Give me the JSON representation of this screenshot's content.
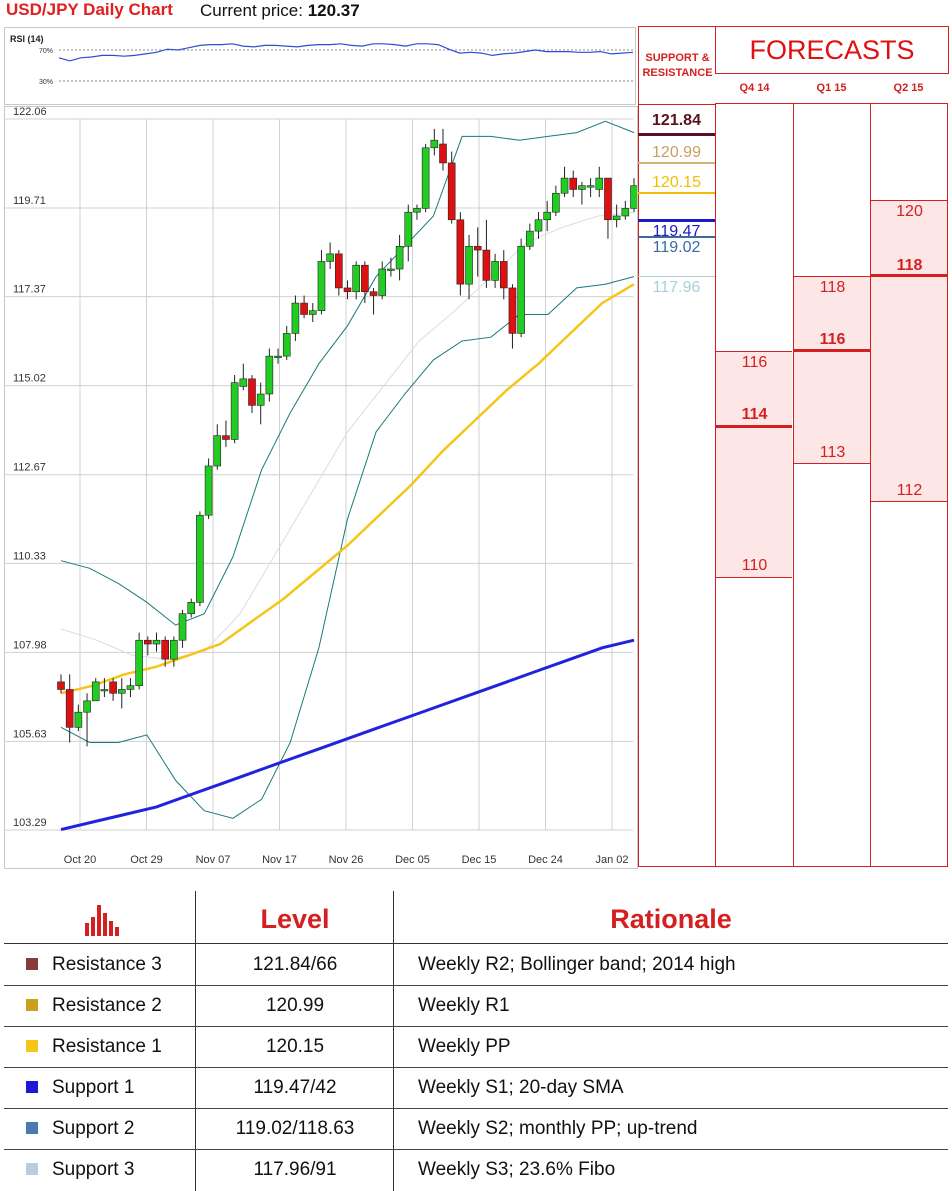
{
  "header": {
    "title": "USD/JPY Daily Chart",
    "price_label": "Current price:",
    "price_value": "120.37"
  },
  "rsi": {
    "label": "RSI (14)",
    "level_high": "70%",
    "level_low": "30%",
    "values": [
      60,
      56,
      60,
      61,
      63,
      63,
      62,
      63,
      65,
      67,
      71,
      70,
      73,
      76,
      77,
      77,
      78,
      75,
      74,
      76,
      76,
      75,
      74,
      76,
      77,
      77,
      78,
      76,
      75,
      78,
      78,
      77,
      75,
      78,
      78,
      77,
      71,
      66,
      67,
      66,
      63,
      65,
      66,
      68,
      70,
      68,
      68,
      68,
      67,
      67,
      68,
      65,
      66,
      67
    ],
    "line_color": "#2a4fd6"
  },
  "chart_data": {
    "type": "candlestick",
    "title": "USD/JPY Daily Chart",
    "yticks": [
      "122.06",
      "119.71",
      "117.37",
      "115.02",
      "112.67",
      "110.33",
      "107.98",
      "105.63",
      "103.29"
    ],
    "ylim": [
      103.29,
      122.06
    ],
    "xticks": [
      "Oct 20",
      "Oct 29",
      "Nov 07",
      "Nov 17",
      "Nov 26",
      "Dec 05",
      "Dec 15",
      "Dec 24",
      "Jan 02"
    ],
    "candles": [
      [
        107.2,
        107.0,
        107.4,
        106.9
      ],
      [
        107.0,
        106.0,
        107.4,
        105.6
      ],
      [
        106.0,
        106.4,
        106.6,
        105.9
      ],
      [
        106.4,
        106.7,
        106.9,
        105.5
      ],
      [
        106.7,
        107.2,
        107.3,
        106.7
      ],
      [
        107.0,
        107.0,
        107.3,
        106.8
      ],
      [
        107.2,
        106.9,
        107.3,
        106.7
      ],
      [
        106.9,
        107.0,
        107.3,
        106.5
      ],
      [
        107.0,
        107.1,
        107.3,
        106.8
      ],
      [
        107.1,
        108.3,
        108.5,
        107.0
      ],
      [
        108.3,
        108.2,
        108.4,
        107.9
      ],
      [
        108.2,
        108.3,
        108.5,
        108.0
      ],
      [
        108.3,
        107.8,
        108.4,
        107.6
      ],
      [
        107.8,
        108.3,
        108.4,
        107.6
      ],
      [
        108.3,
        109.0,
        109.1,
        108.1
      ],
      [
        109.0,
        109.3,
        109.4,
        108.9
      ],
      [
        109.3,
        111.6,
        111.7,
        109.2
      ],
      [
        111.6,
        112.9,
        113.1,
        111.5
      ],
      [
        112.9,
        113.7,
        114.0,
        112.8
      ],
      [
        113.7,
        113.6,
        114.1,
        113.4
      ],
      [
        113.6,
        115.1,
        115.3,
        113.5
      ],
      [
        115.0,
        115.2,
        115.6,
        114.9
      ],
      [
        115.2,
        114.5,
        115.3,
        114.3
      ],
      [
        114.5,
        114.8,
        115.1,
        114.0
      ],
      [
        114.8,
        115.8,
        116.0,
        114.6
      ],
      [
        115.8,
        115.8,
        116.0,
        115.6
      ],
      [
        115.8,
        116.4,
        116.6,
        115.7
      ],
      [
        116.4,
        117.2,
        117.4,
        116.2
      ],
      [
        117.2,
        116.9,
        117.4,
        116.8
      ],
      [
        116.9,
        117.0,
        117.2,
        116.7
      ],
      [
        117.0,
        118.3,
        118.6,
        116.9
      ],
      [
        118.3,
        118.5,
        118.8,
        118.1
      ],
      [
        118.5,
        117.6,
        118.6,
        117.4
      ],
      [
        117.6,
        117.5,
        117.8,
        117.3
      ],
      [
        117.5,
        118.2,
        118.3,
        117.3
      ],
      [
        118.2,
        117.5,
        118.3,
        117.2
      ],
      [
        117.5,
        117.4,
        117.6,
        116.9
      ],
      [
        117.4,
        118.1,
        118.3,
        117.3
      ],
      [
        118.1,
        118.1,
        118.4,
        117.9
      ],
      [
        118.1,
        118.7,
        119.0,
        117.8
      ],
      [
        118.7,
        119.6,
        119.8,
        118.3
      ],
      [
        119.6,
        119.7,
        119.8,
        119.4
      ],
      [
        119.7,
        121.3,
        121.4,
        119.6
      ],
      [
        121.3,
        121.5,
        121.8,
        121.1
      ],
      [
        121.4,
        120.9,
        121.8,
        120.7
      ],
      [
        120.9,
        119.4,
        121.2,
        119.3
      ],
      [
        119.4,
        117.7,
        119.6,
        117.4
      ],
      [
        117.7,
        118.7,
        119.0,
        117.3
      ],
      [
        118.7,
        118.6,
        119.2,
        117.9
      ],
      [
        118.6,
        117.8,
        119.4,
        117.6
      ],
      [
        117.8,
        118.3,
        118.5,
        117.6
      ],
      [
        118.3,
        117.6,
        118.6,
        117.3
      ],
      [
        117.6,
        116.4,
        117.7,
        116.0
      ],
      [
        116.4,
        118.7,
        118.9,
        116.3
      ],
      [
        118.7,
        119.1,
        119.3,
        118.6
      ],
      [
        119.1,
        119.4,
        119.6,
        118.9
      ],
      [
        119.4,
        119.6,
        119.9,
        119.1
      ],
      [
        119.6,
        120.1,
        120.3,
        119.5
      ],
      [
        120.1,
        120.5,
        120.8,
        120.0
      ],
      [
        120.5,
        120.2,
        120.7,
        120.0
      ],
      [
        120.2,
        120.3,
        120.4,
        119.8
      ],
      [
        120.3,
        120.3,
        120.5,
        120.0
      ],
      [
        120.2,
        120.5,
        120.8,
        120.0
      ],
      [
        120.5,
        119.4,
        120.5,
        118.9
      ],
      [
        119.4,
        119.5,
        119.8,
        119.2
      ],
      [
        119.5,
        119.7,
        119.9,
        119.4
      ],
      [
        119.7,
        120.3,
        120.5,
        119.6
      ]
    ],
    "sma50_values": [
      106.9,
      107.1,
      107.4,
      107.6,
      107.9,
      108.2,
      108.8,
      109.4,
      110.1,
      110.8,
      111.6,
      112.4,
      113.3,
      114.1,
      114.9,
      115.6,
      116.4,
      117.2,
      117.7
    ],
    "sma200_values": [
      103.3,
      103.5,
      103.7,
      103.9,
      104.2,
      104.5,
      104.8,
      105.1,
      105.4,
      105.7,
      106.0,
      106.3,
      106.6,
      106.9,
      107.2,
      107.5,
      107.8,
      108.1,
      108.3
    ],
    "bb_upper": [
      110.4,
      110.2,
      109.8,
      109.3,
      108.7,
      109.0,
      110.5,
      112.8,
      114.3,
      115.6,
      116.6,
      117.9,
      118.7,
      119.5,
      121.6,
      121.6,
      121.5,
      121.6,
      121.7,
      122.0,
      121.7
    ],
    "bb_lower": [
      106.0,
      105.6,
      105.6,
      105.8,
      104.6,
      103.8,
      103.6,
      104.1,
      105.6,
      108.1,
      111.5,
      113.8,
      114.8,
      115.7,
      116.2,
      116.3,
      116.9,
      116.9,
      117.6,
      117.7,
      117.9
    ],
    "bb_mid": [
      108.6,
      108.3,
      107.9,
      107.8,
      108.0,
      109.0,
      110.6,
      112.2,
      113.8,
      115.0,
      116.2,
      117.0,
      117.9,
      118.8,
      119.2,
      119.5,
      119.6
    ],
    "up_color": "#22cc22",
    "down_color": "#dd1111",
    "sma50_color": "#f5c518",
    "sma200_color": "#2222dd",
    "bb_color": "#1a7a7a"
  },
  "forecast_panel": {
    "support_label_1": "SUPPORT &",
    "support_label_2": "RESISTANCE",
    "forecasts_title": "FORECASTS",
    "quarters": [
      "Q4 14",
      "Q1 15",
      "Q2 15"
    ],
    "levels": [
      {
        "value": "121.84",
        "color": "#5a1020",
        "bold": true
      },
      {
        "value": "120.99",
        "color": "#c8a060",
        "bold": false
      },
      {
        "value": "120.15",
        "color": "#f0c000",
        "bold": false
      },
      {
        "value": "119.47",
        "color": "#1a1ac8",
        "bold": false
      },
      {
        "value": "119.02",
        "color": "#3a6aa0",
        "bold": false
      },
      {
        "value": "117.96",
        "color": "#a8d0d8",
        "bold": false
      }
    ],
    "columns": [
      {
        "top": "116",
        "mid": "114",
        "bottom": "110"
      },
      {
        "top": "118",
        "mid": "116",
        "bottom": "113"
      },
      {
        "top": "120",
        "mid": "118",
        "bottom": "112"
      }
    ]
  },
  "table": {
    "head_level": "Level",
    "head_rationale": "Rationale",
    "rows": [
      {
        "name": "Resistance 3",
        "level": "121.84/66",
        "rationale": "Weekly R2; Bollinger band; 2014 high",
        "color": "#8b3a3a"
      },
      {
        "name": "Resistance 2",
        "level": "120.99",
        "rationale": "Weekly R1",
        "color": "#c9a020"
      },
      {
        "name": "Resistance 1",
        "level": "120.15",
        "rationale": "Weekly PP",
        "color": "#f5c518"
      },
      {
        "name": "Support 1",
        "level": "119.47/42",
        "rationale": "Weekly S1; 20-day SMA",
        "color": "#1a1ad0"
      },
      {
        "name": "Support 2",
        "level": "119.02/118.63",
        "rationale": "Weekly S2; monthly PP; up-trend",
        "color": "#4a7ab0"
      },
      {
        "name": "Support 3",
        "level": "117.96/91",
        "rationale": "Weekly S3; 23.6% Fibo",
        "color": "#b8cce4"
      }
    ]
  }
}
